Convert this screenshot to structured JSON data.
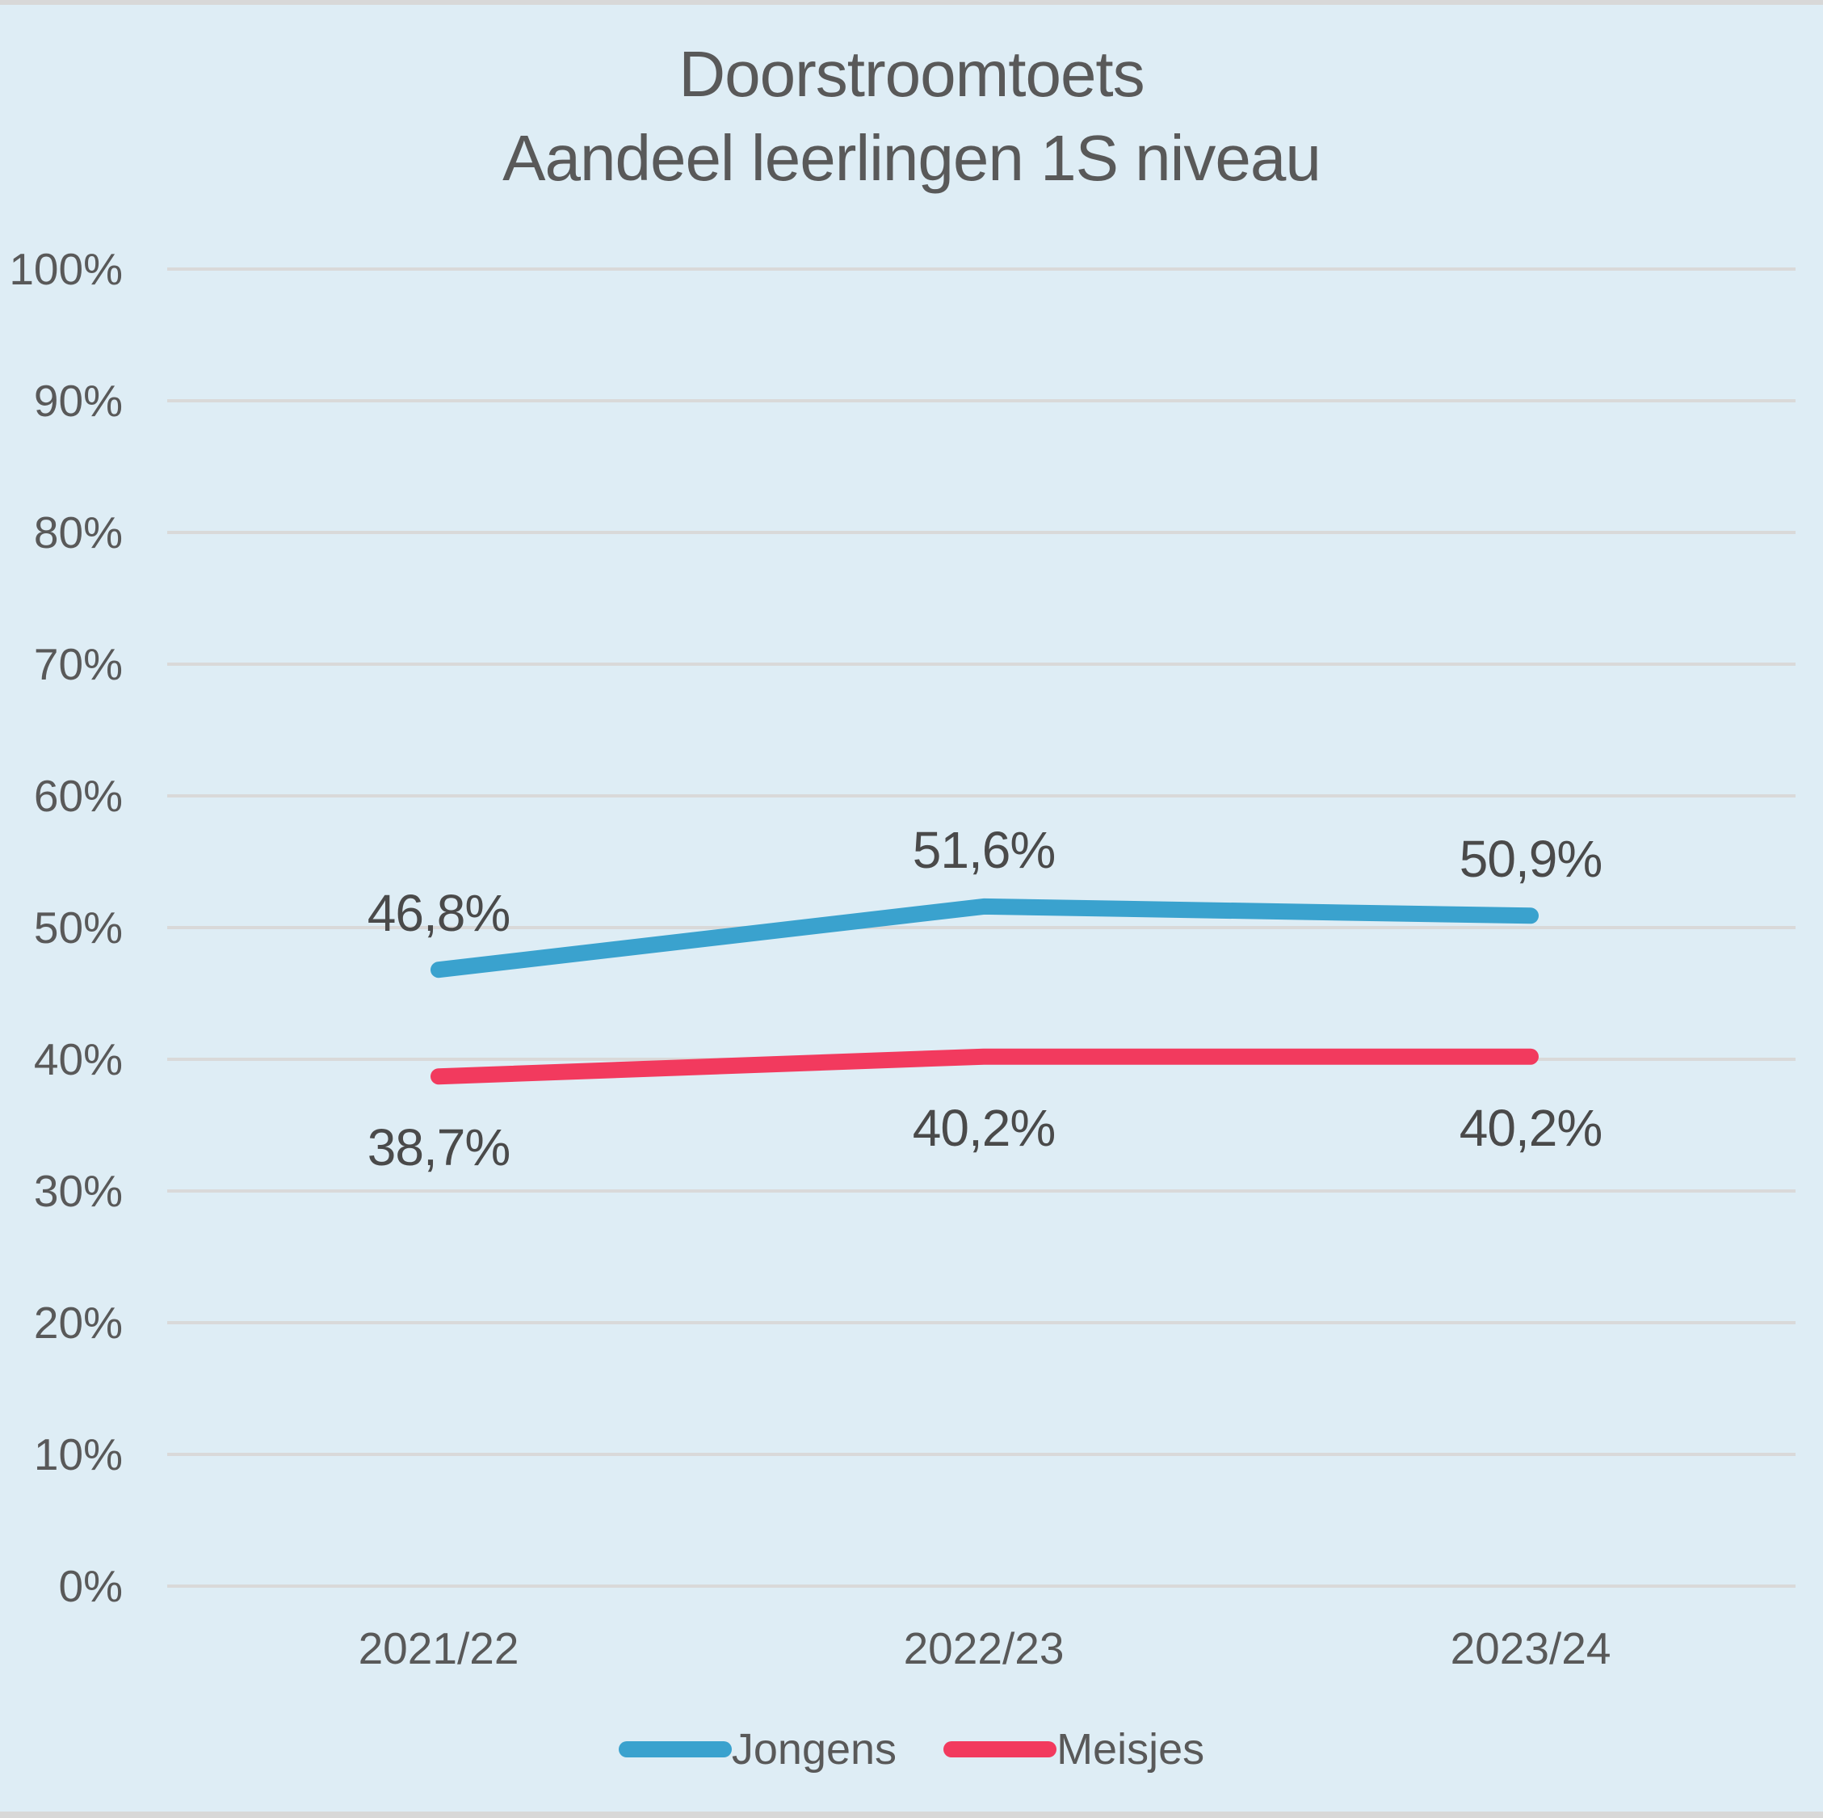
{
  "title": {
    "line1": "Doorstroomtoets",
    "line2": "Aandeel leerlingen 1S niveau"
  },
  "chart_data": {
    "type": "line",
    "title": "Doorstroomtoets — Aandeel leerlingen 1S niveau",
    "categories": [
      "2021/22",
      "2022/23",
      "2023/24"
    ],
    "series": [
      {
        "name": "Jongens",
        "values": [
          46.8,
          51.6,
          50.9
        ],
        "labels": [
          "46,8%",
          "51,6%",
          "50,9%"
        ],
        "color": "#3AA2CE",
        "label_position": "above"
      },
      {
        "name": "Meisjes",
        "values": [
          38.7,
          40.2,
          40.2
        ],
        "labels": [
          "38,7%",
          "40,2%",
          "40,2%"
        ],
        "color": "#F23A5E",
        "label_position": "below"
      }
    ],
    "y_axis": {
      "range": [
        0,
        100
      ],
      "grid": true,
      "ticks": [
        {
          "value": 0,
          "label": "0%"
        },
        {
          "value": 10,
          "label": "10%"
        },
        {
          "value": 20,
          "label": "20%"
        },
        {
          "value": 30,
          "label": "30%"
        },
        {
          "value": 40,
          "label": "40%"
        },
        {
          "value": 50,
          "label": "50%"
        },
        {
          "value": 60,
          "label": "60%"
        },
        {
          "value": 70,
          "label": "70%"
        },
        {
          "value": 80,
          "label": "80%"
        },
        {
          "value": 90,
          "label": "90%"
        },
        {
          "value": 100,
          "label": "100%"
        }
      ]
    },
    "legend": {
      "position": "bottom",
      "items": [
        "Jongens",
        "Meisjes"
      ]
    }
  },
  "colors": {
    "background": "#DEEDF5",
    "gridline": "#D9D9D9",
    "text": "#595959",
    "edge_strip": "#D8D8D8",
    "jongens": "#3AA2CE",
    "meisjes": "#F23A5E"
  }
}
